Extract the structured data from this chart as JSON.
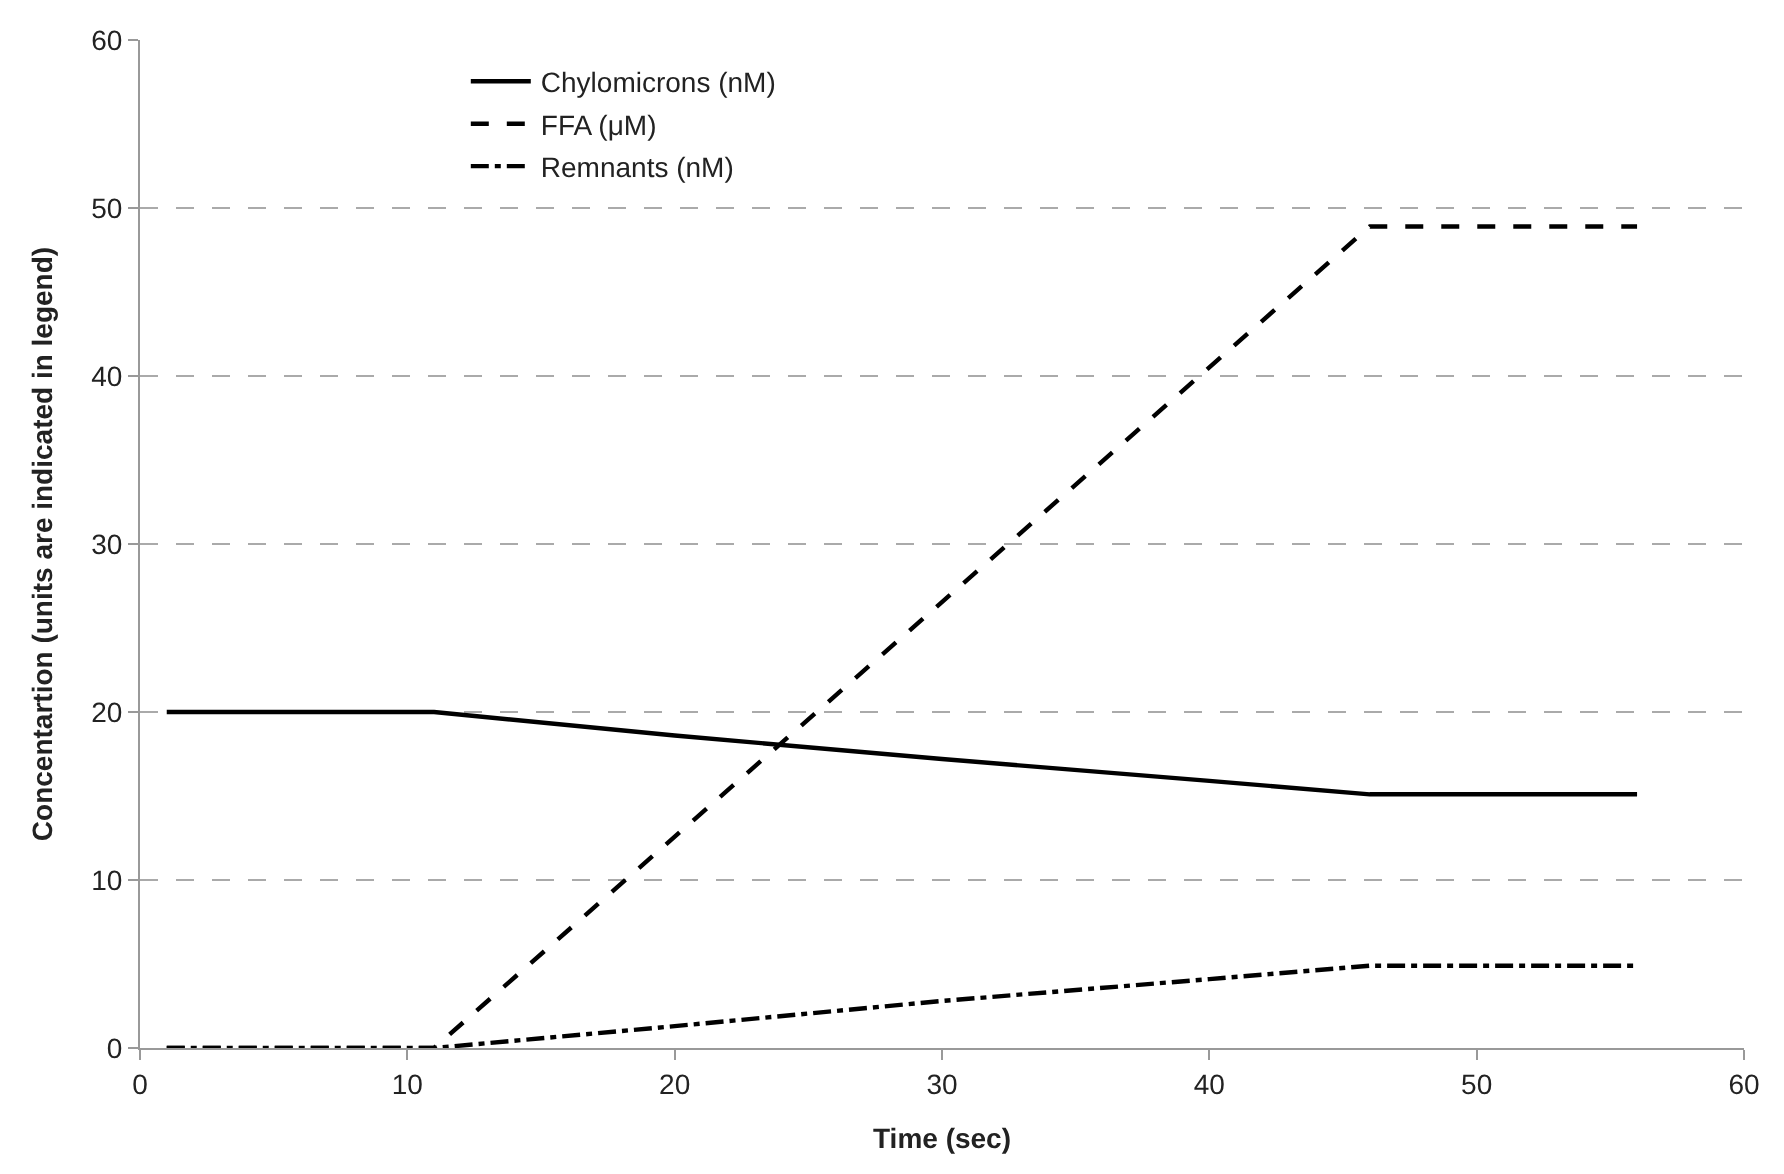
{
  "chart_data": {
    "type": "line",
    "xlabel": "Time (sec)",
    "ylabel": "Concentartion (units are indicated in legend)",
    "x": [
      1,
      11,
      20,
      30,
      40,
      46,
      56
    ],
    "series": [
      {
        "name": "Chylomicrons (nM)",
        "color": "#000000",
        "line_style": "solid",
        "values": [
          20,
          20,
          18.6,
          17.2,
          15.9,
          15.1,
          15.1
        ]
      },
      {
        "name": "FFA (μM)",
        "color": "#000000",
        "line_style": "dashed",
        "x": [
          1,
          11,
          46,
          56
        ],
        "values": [
          0,
          0,
          48.9,
          48.9
        ]
      },
      {
        "name": "Remnants (nM)",
        "color": "#000000",
        "line_style": "dashdot",
        "values": [
          0,
          0,
          1.3,
          2.8,
          4.1,
          4.9,
          4.9
        ]
      }
    ],
    "xlim": [
      0,
      60
    ],
    "xticks": [
      0,
      10,
      20,
      30,
      40,
      50,
      60
    ],
    "ylim": [
      0,
      60
    ],
    "yticks": [
      0,
      10,
      20,
      30,
      40,
      50,
      60
    ],
    "grid": "y",
    "legend": "top left",
    "marker": "none"
  }
}
